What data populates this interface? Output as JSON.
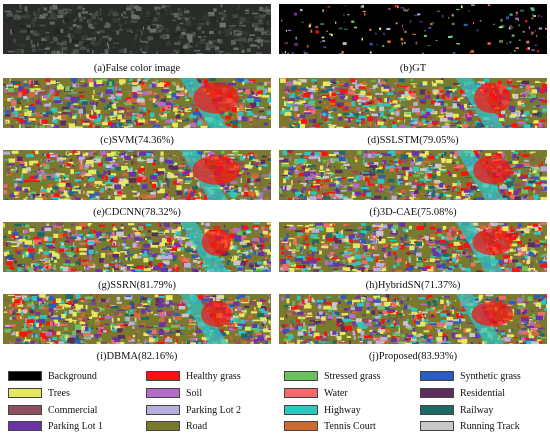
{
  "figure": {
    "panels": [
      {
        "caption": "(a)False color image",
        "kind": "false-color"
      },
      {
        "caption": "(b)GT",
        "kind": "gt"
      },
      {
        "caption": "(c)SVM(74.36%)",
        "kind": "map"
      },
      {
        "caption": "(d)SSLSTM(79.05%)",
        "kind": "map"
      },
      {
        "caption": "(e)CDCNN(78.32%)",
        "kind": "map"
      },
      {
        "caption": "(f)3D-CAE(75.08%)",
        "kind": "map"
      },
      {
        "caption": "(g)SSRN(81.79%)",
        "kind": "map"
      },
      {
        "caption": "(h)HybridSN(71.37%)",
        "kind": "map"
      },
      {
        "caption": "(i)DBMA(82.16%)",
        "kind": "map"
      },
      {
        "caption": "(j)Proposed(83.93%)",
        "kind": "map"
      }
    ],
    "legend": [
      {
        "label": "Background",
        "color": "#000000"
      },
      {
        "label": "Trees",
        "color": "#e8e860"
      },
      {
        "label": "Commercial",
        "color": "#8e4f5e"
      },
      {
        "label": "Parking Lot 1",
        "color": "#6a34a8"
      },
      {
        "label": "Healthy grass",
        "color": "#ff1010"
      },
      {
        "label": "Soil",
        "color": "#b46cc8"
      },
      {
        "label": "Parking Lot 2",
        "color": "#b8aee0"
      },
      {
        "label": "Road",
        "color": "#7a7a2e"
      },
      {
        "label": "Stressed grass",
        "color": "#6cc060"
      },
      {
        "label": "Water",
        "color": "#f06c6c"
      },
      {
        "label": "Highway",
        "color": "#2ec6c0"
      },
      {
        "label": "Tennis Court",
        "color": "#cc6a30"
      },
      {
        "label": "Synthetic grass",
        "color": "#2a5cc4"
      },
      {
        "label": "Residential",
        "color": "#5c2e5a"
      },
      {
        "label": "Railway",
        "color": "#1e6a66"
      },
      {
        "label": "Running Track",
        "color": "#c8c8c8"
      }
    ]
  }
}
